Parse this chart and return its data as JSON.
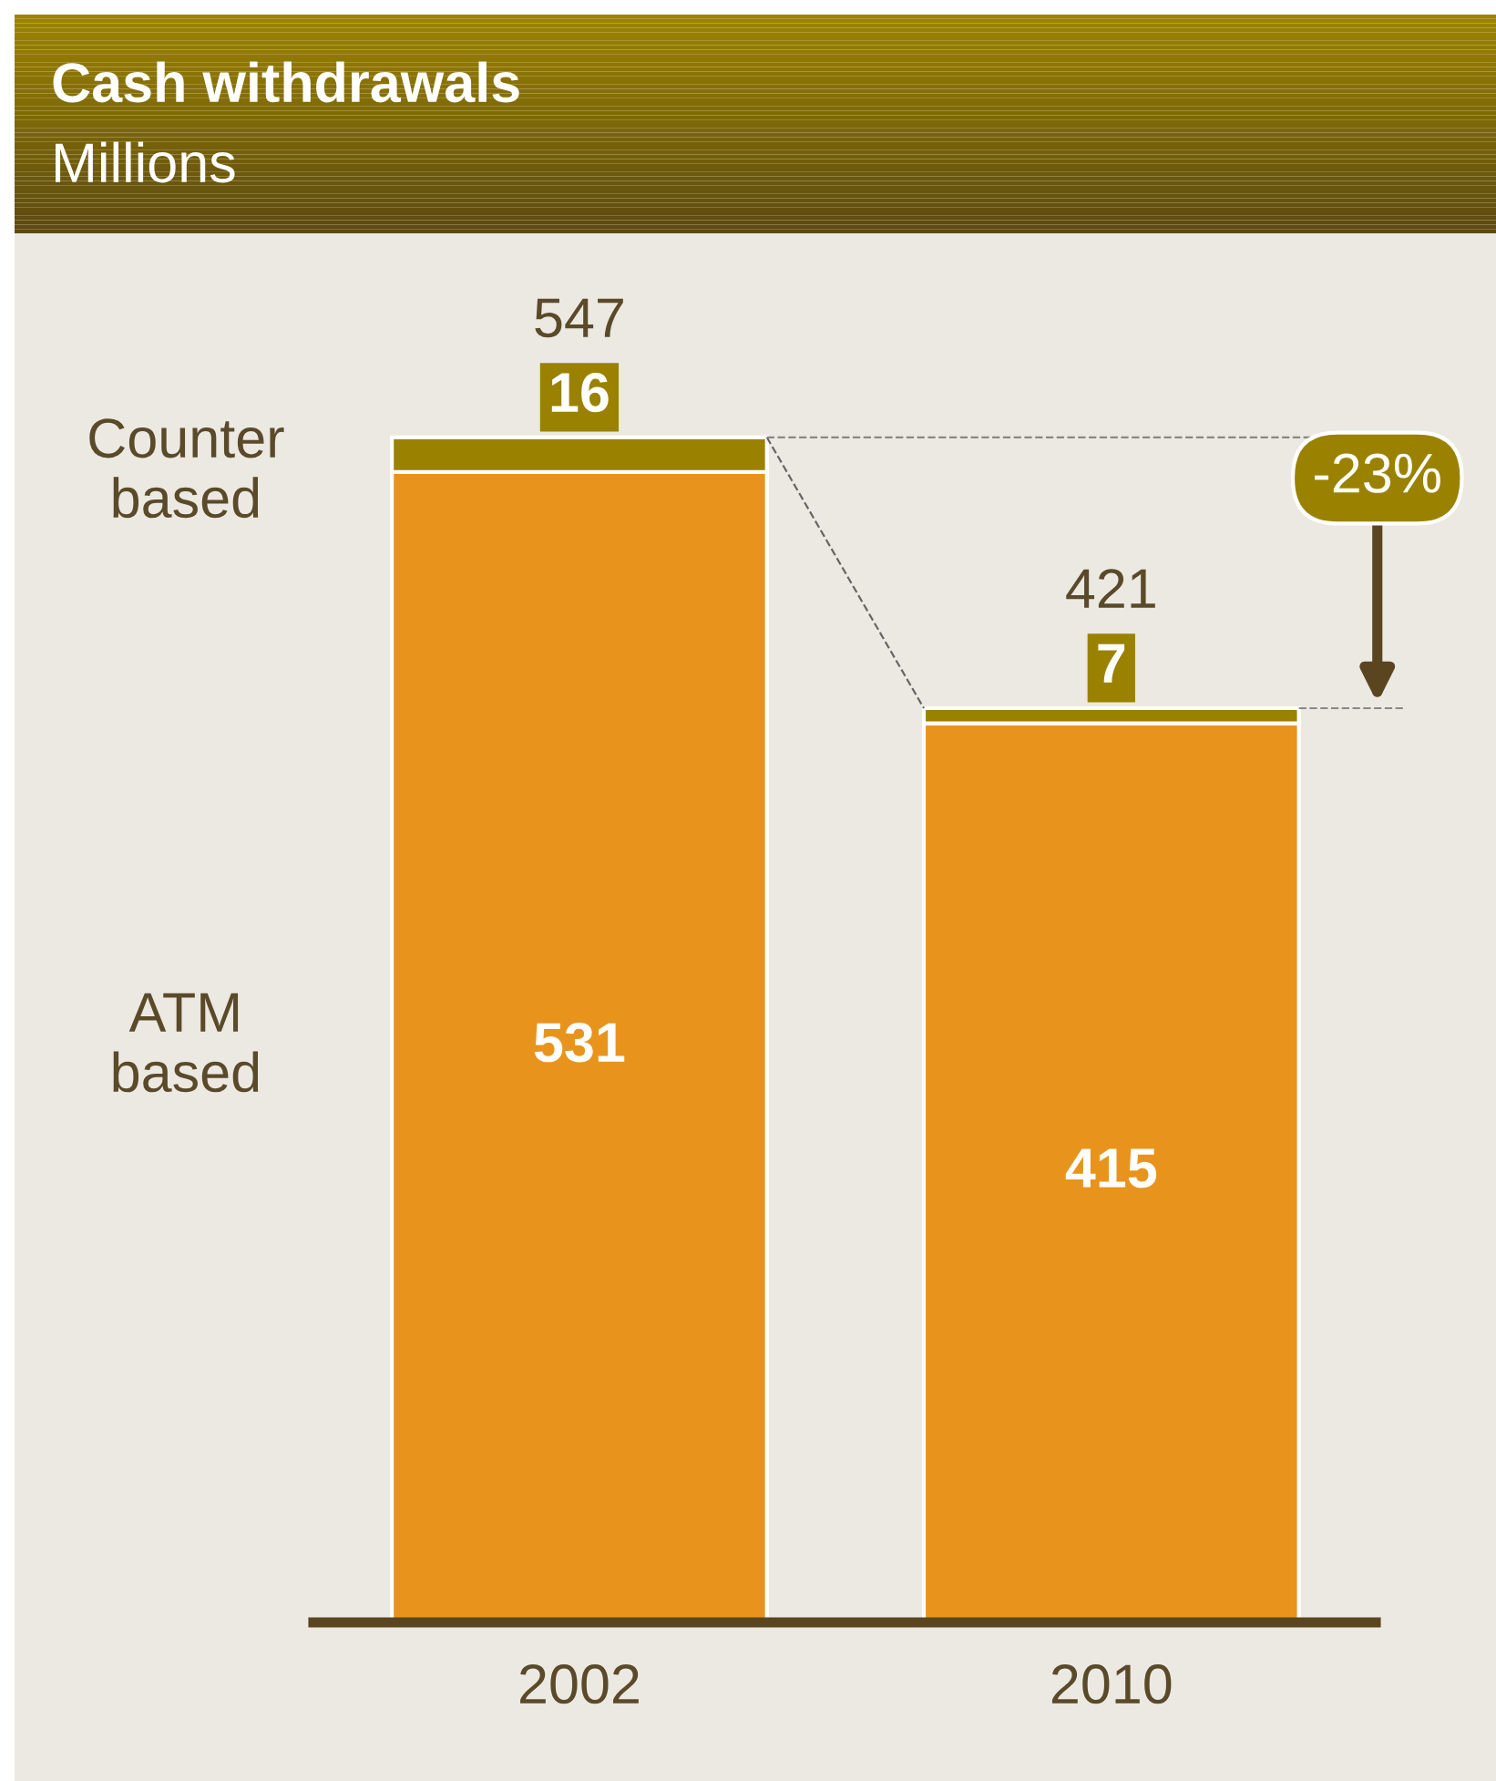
{
  "chart_data": {
    "type": "bar",
    "title": "Cash withdrawals",
    "subtitle": "Millions",
    "categories": [
      "2002",
      "2010"
    ],
    "series": [
      {
        "name": "ATM based",
        "color": "#e8941c",
        "values": [
          531,
          415
        ]
      },
      {
        "name": "Counter based",
        "color": "#9a8200",
        "values": [
          16,
          7
        ]
      }
    ],
    "stacked": true,
    "data_labels": true,
    "totals": [
      "547",
      "421"
    ],
    "annotations": [
      "-23%"
    ],
    "legend": false,
    "grid": false,
    "tick_labels": "x"
  }
}
